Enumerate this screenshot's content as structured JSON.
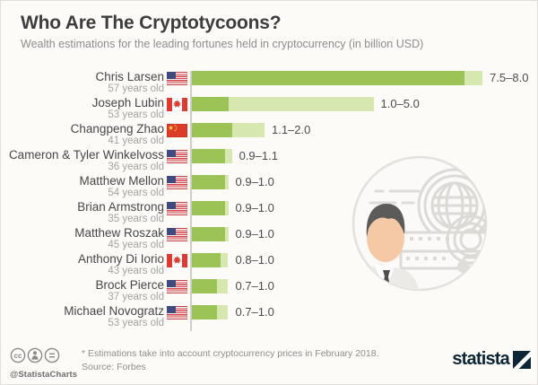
{
  "chart_data": {
    "type": "bar",
    "orientation": "horizontal",
    "title": "Who Are The Cryptotycoons?",
    "subtitle": "Wealth estimations for the leading fortunes held in cryptocurrency (in billion USD)",
    "unit": "billion USD",
    "xlim": [
      0,
      8.0
    ],
    "axis_ticks_visible": false,
    "legend": "dark green = low estimate, light green = high estimate",
    "rows": [
      {
        "name": "Chris Larsen",
        "age": "57 years old",
        "country": "us",
        "min": 7.5,
        "max": 8.0,
        "range_label": "7.5–8.0"
      },
      {
        "name": "Joseph Lubin",
        "age": "53 years old",
        "country": "ca",
        "min": 1.0,
        "max": 5.0,
        "range_label": "1.0–5.0"
      },
      {
        "name": "Changpeng Zhao",
        "age": "41 years old",
        "country": "cn",
        "min": 1.1,
        "max": 2.0,
        "range_label": "1.1–2.0"
      },
      {
        "name": "Cameron & Tyler Winkelvoss",
        "age": "36 years old",
        "country": "us",
        "min": 0.9,
        "max": 1.1,
        "range_label": "0.9–1.1"
      },
      {
        "name": "Matthew Mellon",
        "age": "54 years old",
        "country": "us",
        "min": 0.9,
        "max": 1.0,
        "range_label": "0.9–1.0"
      },
      {
        "name": "Brian Armstrong",
        "age": "35 years old",
        "country": "us",
        "min": 0.9,
        "max": 1.0,
        "range_label": "0.9–1.0"
      },
      {
        "name": "Matthew Roszak",
        "age": "45 years old",
        "country": "us",
        "min": 0.9,
        "max": 1.0,
        "range_label": "0.9–1.0"
      },
      {
        "name": "Anthony Di Iorio",
        "age": "43 years old",
        "country": "ca",
        "min": 0.8,
        "max": 1.0,
        "range_label": "0.8–1.0"
      },
      {
        "name": "Brock Pierce",
        "age": "37 years old",
        "country": "us",
        "min": 0.7,
        "max": 1.0,
        "range_label": "0.7–1.0"
      },
      {
        "name": "Michael Novogratz",
        "age": "53 years old",
        "country": "us",
        "min": 0.7,
        "max": 1.0,
        "range_label": "0.7–1.0"
      }
    ]
  },
  "colors": {
    "bar_low": "#9cc355",
    "bar_high": "#d6e7b0",
    "brand_navy": "#0c2638"
  },
  "icons": [
    "cc-icon",
    "cc-attribution-icon",
    "cc-equals-icon",
    "us-flag-icon",
    "ca-flag-icon",
    "cn-flag-icon",
    "businessman-globe-illustration",
    "statista-logo-mark"
  ],
  "footer": {
    "handle": "@StatistaCharts",
    "note": "* Estimations take into account cryptocurrency prices in February 2018.",
    "source": "Source: Forbes",
    "brand": "statista"
  }
}
